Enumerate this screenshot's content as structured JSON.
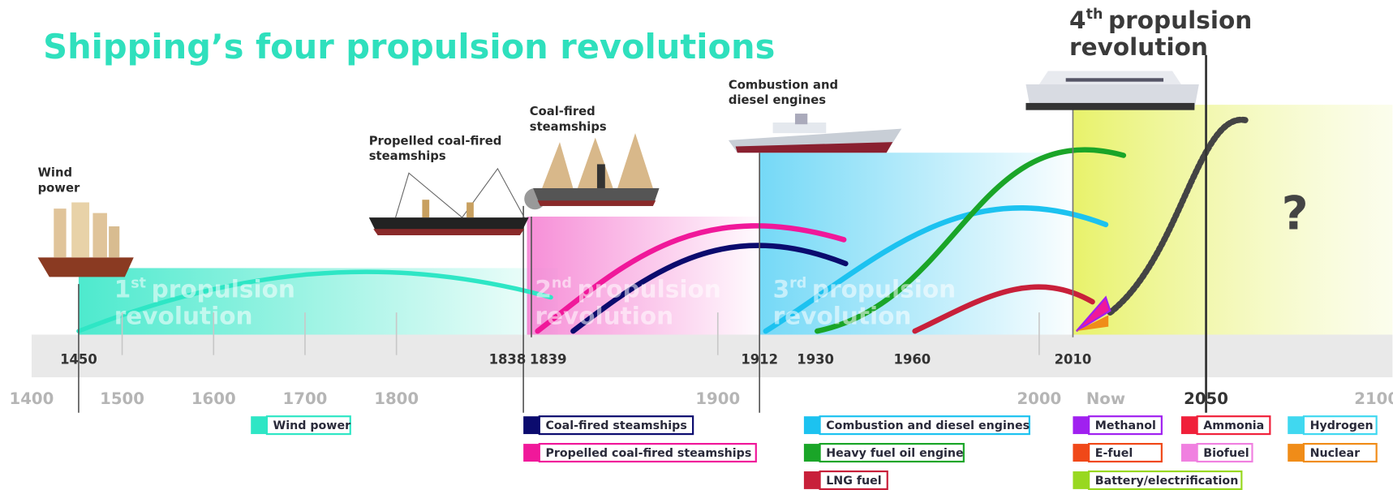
{
  "title": "Shipping’s four propulsion revolutions",
  "fourth": {
    "ordinal": "4",
    "sup": "th",
    "line1": "propulsion",
    "line2": "revolution"
  },
  "revolutions": [
    {
      "ordinal": "1",
      "sup": "st",
      "line1": "propulsion",
      "line2": "revolution"
    },
    {
      "ordinal": "2",
      "sup": "nd",
      "line1": "propulsion",
      "line2": "revolution"
    },
    {
      "ordinal": "3",
      "sup": "rd",
      "line1": "propulsion",
      "line2": "revolution"
    }
  ],
  "ships": [
    {
      "line1": "Wind",
      "line2": "power"
    },
    {
      "line1": "Propelled coal-fired",
      "line2": "steamships"
    },
    {
      "line1": "Coal-fired",
      "line2": "steamships"
    },
    {
      "line1": "Combustion and",
      "line2": "diesel engines"
    }
  ],
  "milestones": [
    1450,
    1838,
    1839,
    1912,
    1930,
    1960,
    2010
  ],
  "axis": [
    1400,
    1500,
    1600,
    1700,
    1800,
    1900,
    2000,
    "Now",
    2050,
    2100
  ],
  "question": "?",
  "legend": [
    {
      "label": "Wind power",
      "color": "#2ee6c5"
    },
    {
      "label": "Coal-fired steamships",
      "color": "#0b0b6e"
    },
    {
      "label": "Propelled coal-fired steamships",
      "color": "#f0189a"
    },
    {
      "label": "Combustion and diesel engines",
      "color": "#1cc2f0"
    },
    {
      "label": "Heavy fuel oil engine",
      "color": "#1aa528"
    },
    {
      "label": "LNG fuel",
      "color": "#c8203a"
    },
    {
      "label": "Methanol",
      "color": "#a020f0"
    },
    {
      "label": "Ammonia",
      "color": "#f0203a"
    },
    {
      "label": "Hydrogen",
      "color": "#40d8f0"
    },
    {
      "label": "E-fuel",
      "color": "#f04818"
    },
    {
      "label": "Biofuel",
      "color": "#f080e0"
    },
    {
      "label": "Nuclear",
      "color": "#f08c18"
    },
    {
      "label": "Battery/electrification",
      "color": "#98d820"
    }
  ]
}
